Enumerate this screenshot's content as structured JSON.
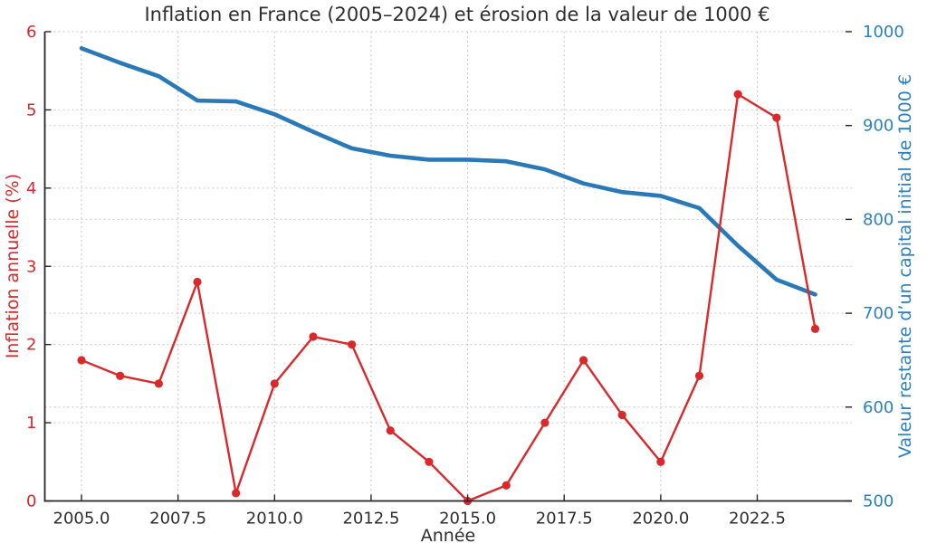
{
  "title": "Inflation en France (2005–2024) et érosion de la valeur de 1000 €",
  "chart_data": {
    "type": "line",
    "title": "Inflation en France (2005–2024) et érosion de la valeur de 1000 €",
    "xlabel": "Année",
    "ylabel_left": "Inflation annuelle (%)",
    "ylabel_right": "Valeur restante d’un capital initial de 1000 €",
    "x": [
      2005,
      2006,
      2007,
      2008,
      2009,
      2010,
      2011,
      2012,
      2013,
      2014,
      2015,
      2016,
      2017,
      2018,
      2019,
      2020,
      2021,
      2022,
      2023,
      2024
    ],
    "series": [
      {
        "name": "Inflation annuelle (%)",
        "axis": "left",
        "color": "#d9292b",
        "marker": "circle",
        "line_width": 2.4,
        "values": [
          1.8,
          1.6,
          1.5,
          2.8,
          0.1,
          1.5,
          2.1,
          2.0,
          0.9,
          0.5,
          0.0,
          0.2,
          1.0,
          1.8,
          1.1,
          0.5,
          1.6,
          5.2,
          4.9,
          2.2
        ]
      },
      {
        "name": "Valeur restante d’un capital initial de 1000 €",
        "axis": "right",
        "color": "#2979b9",
        "marker": "none",
        "line_width": 4.6,
        "values": [
          982.3,
          966.8,
          952.6,
          926.6,
          925.7,
          912.0,
          893.3,
          875.7,
          867.9,
          863.6,
          863.6,
          861.9,
          853.3,
          838.3,
          829.1,
          825.0,
          812.0,
          771.9,
          735.8,
          720.0
        ]
      }
    ],
    "xlim": [
      2004.05,
      2024.95
    ],
    "ylim_left": [
      0,
      6
    ],
    "ylim_right": [
      500,
      1000
    ],
    "xticks": [
      2005.0,
      2007.5,
      2010.0,
      2012.5,
      2015.0,
      2017.5,
      2020.0,
      2022.5
    ],
    "yticks_left": [
      0,
      1,
      2,
      3,
      4,
      5,
      6
    ],
    "yticks_right": [
      500,
      600,
      700,
      800,
      900,
      1000
    ],
    "grid": true,
    "legend": "none",
    "colors": {
      "red_accent": "#d9292b",
      "blue_line": "#2979b9",
      "blue_text": "#2b80c4",
      "grid": "#c9c9c9",
      "axis": "#262626",
      "text": "#2e2e2e",
      "background": "#ffffff"
    }
  }
}
